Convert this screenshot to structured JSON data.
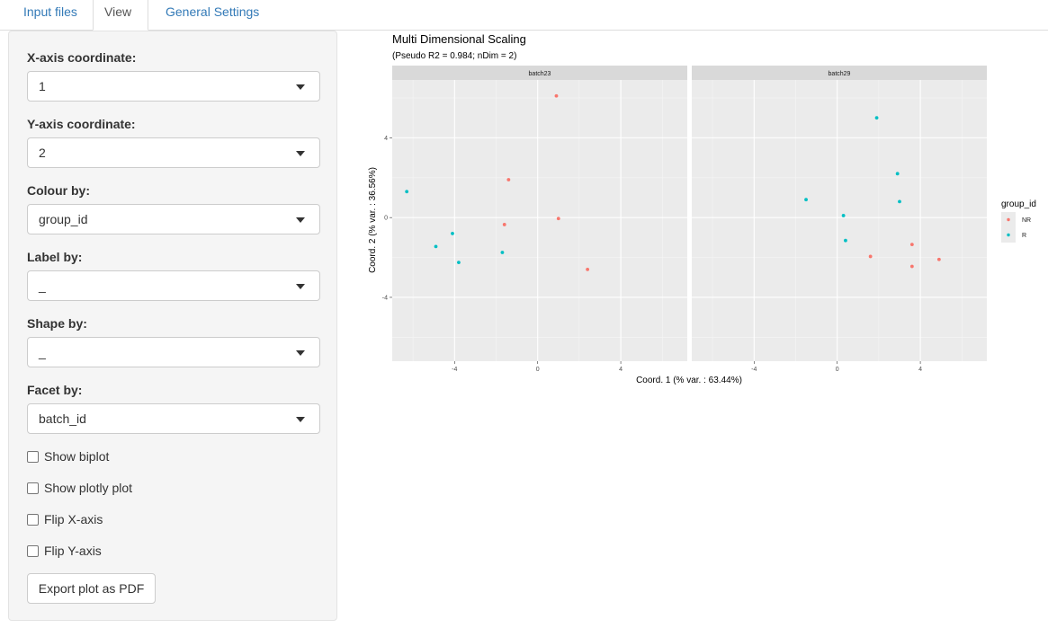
{
  "tabs": [
    {
      "label": "Input files"
    },
    {
      "label": "View"
    },
    {
      "label": "General Settings"
    }
  ],
  "sidebar": {
    "x_axis": {
      "label": "X-axis coordinate:",
      "value": "1"
    },
    "y_axis": {
      "label": "Y-axis coordinate:",
      "value": "2"
    },
    "colour": {
      "label": "Colour by:",
      "value": "group_id"
    },
    "label": {
      "label": "Label by:",
      "value": "_"
    },
    "shape": {
      "label": "Shape by:",
      "value": "_"
    },
    "facet": {
      "label": "Facet by:",
      "value": "batch_id"
    },
    "checkboxes": [
      {
        "label": "Show biplot",
        "checked": false
      },
      {
        "label": "Show plotly plot",
        "checked": false
      },
      {
        "label": "Flip X-axis",
        "checked": false
      },
      {
        "label": "Flip Y-axis",
        "checked": false
      }
    ],
    "export_label": "Export plot as PDF"
  },
  "chart_data": {
    "type": "scatter",
    "title": "Multi Dimensional Scaling",
    "subtitle": "(Pseudo R2 = 0.984; nDim = 2)",
    "xlabel": "Coord. 1 (% var. : 63.44%)",
    "ylabel": "Coord. 2 (% var. : 36.56%)",
    "xlim": [
      -7,
      7.2
    ],
    "ylim": [
      -7.2,
      6.9
    ],
    "x_ticks": [
      -4,
      0,
      4
    ],
    "y_ticks": [
      4,
      0,
      -4
    ],
    "x_tick_labels": [
      "-4",
      "0",
      "4"
    ],
    "y_tick_labels": [
      "4",
      "0",
      "-4"
    ],
    "grid": true,
    "legend": {
      "title": "group_id",
      "position": "right"
    },
    "colors": {
      "NR": "#f8766d",
      "R": "#00bfc4"
    },
    "series": [
      {
        "name": "NR",
        "color": "#f8766d"
      },
      {
        "name": "R",
        "color": "#00bfc4"
      }
    ],
    "facets": [
      {
        "label": "batch23",
        "points": [
          {
            "group": "NR",
            "x": 0.9,
            "y": 6.1
          },
          {
            "group": "NR",
            "x": -1.4,
            "y": 1.9
          },
          {
            "group": "NR",
            "x": -1.6,
            "y": -0.35
          },
          {
            "group": "NR",
            "x": 1.0,
            "y": -0.05
          },
          {
            "group": "NR",
            "x": 2.4,
            "y": -2.6
          },
          {
            "group": "R",
            "x": -6.3,
            "y": 1.3
          },
          {
            "group": "R",
            "x": -4.1,
            "y": -0.8
          },
          {
            "group": "R",
            "x": -4.9,
            "y": -1.45
          },
          {
            "group": "R",
            "x": -3.8,
            "y": -2.25
          },
          {
            "group": "R",
            "x": -1.7,
            "y": -1.75
          }
        ]
      },
      {
        "label": "batch29",
        "points": [
          {
            "group": "R",
            "x": 1.9,
            "y": 5.0
          },
          {
            "group": "R",
            "x": 2.9,
            "y": 2.2
          },
          {
            "group": "R",
            "x": -1.5,
            "y": 0.9
          },
          {
            "group": "R",
            "x": 3.0,
            "y": 0.8
          },
          {
            "group": "R",
            "x": 0.3,
            "y": 0.1
          },
          {
            "group": "R",
            "x": 0.4,
            "y": -1.15
          },
          {
            "group": "NR",
            "x": 3.6,
            "y": -1.35
          },
          {
            "group": "NR",
            "x": 1.6,
            "y": -1.95
          },
          {
            "group": "NR",
            "x": 3.6,
            "y": -2.45
          },
          {
            "group": "NR",
            "x": 4.9,
            "y": -2.1
          }
        ]
      }
    ]
  }
}
